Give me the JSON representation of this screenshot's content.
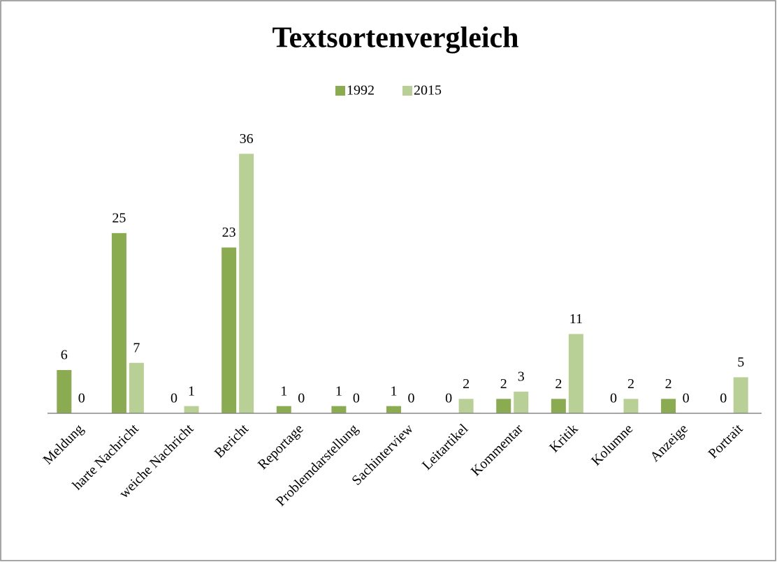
{
  "chart_data": {
    "type": "bar",
    "title": "Textsortenvergleich",
    "categories": [
      "Meldung",
      "harte Nachricht",
      "weiche Nachricht",
      "Bericht",
      "Reportage",
      "Problemdarstellung",
      "Sachinterview",
      "Leitartikel",
      "Kommentar",
      "Kritik",
      "Kolumne",
      "Anzeige",
      "Portrait"
    ],
    "series": [
      {
        "name": "1992",
        "color": "#8aab4f",
        "values": [
          6,
          25,
          0,
          23,
          1,
          1,
          1,
          0,
          2,
          2,
          0,
          2,
          0
        ]
      },
      {
        "name": "2015",
        "color": "#b8d095",
        "values": [
          0,
          7,
          1,
          36,
          0,
          0,
          0,
          2,
          3,
          11,
          2,
          0,
          5
        ]
      }
    ],
    "ylim": [
      0,
      40
    ],
    "legend": "top"
  }
}
